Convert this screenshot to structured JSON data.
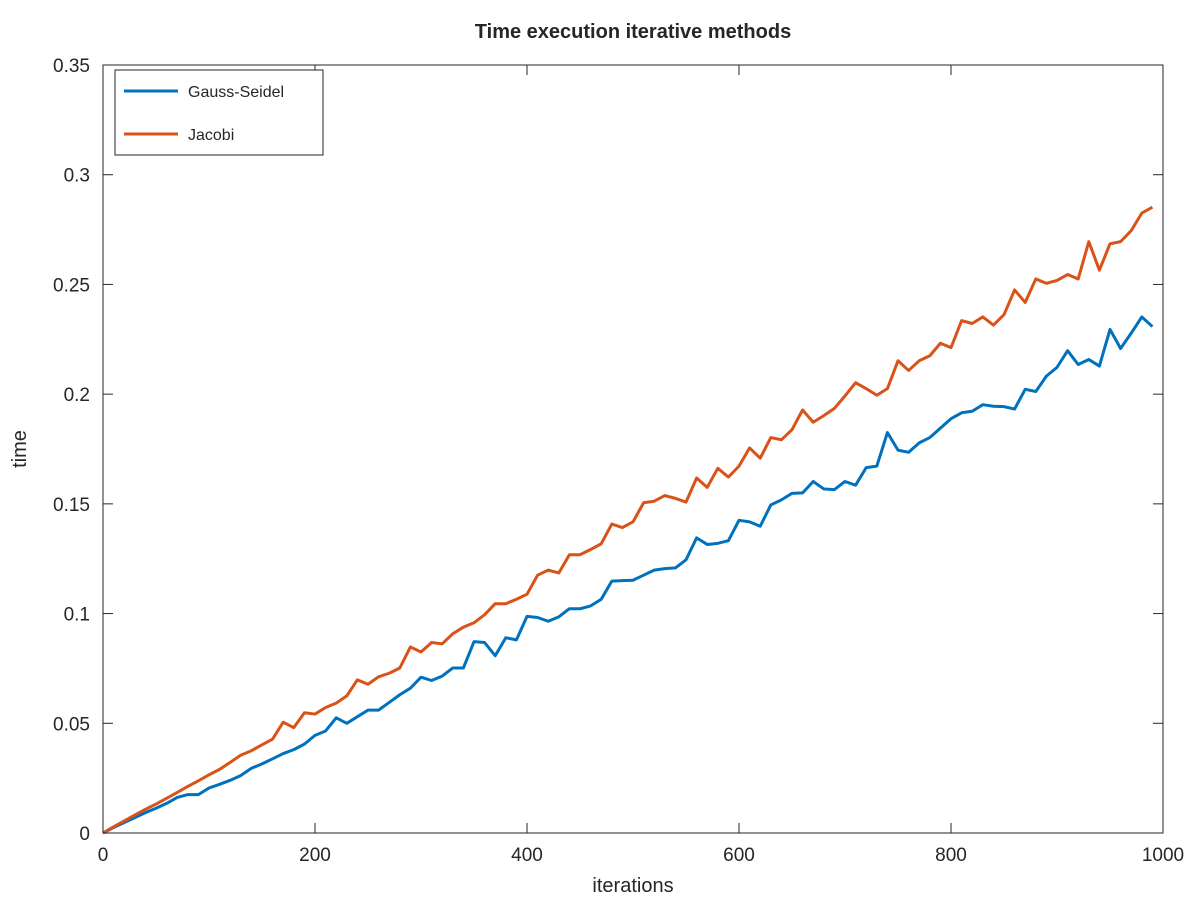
{
  "chart_data": {
    "type": "line",
    "title": "Time execution iterative methods",
    "xlabel": "iterations",
    "ylabel": "time",
    "xlim": [
      0,
      1000
    ],
    "ylim": [
      0,
      0.35
    ],
    "x_ticks": [
      0,
      200,
      400,
      600,
      800,
      1000
    ],
    "x_tick_labels": [
      "0",
      "200",
      "400",
      "600",
      "800",
      "1000"
    ],
    "y_ticks": [
      0,
      0.05,
      0.1,
      0.15,
      0.2,
      0.25,
      0.3,
      0.35
    ],
    "y_tick_labels": [
      "0",
      "0.05",
      "0.1",
      "0.15",
      "0.2",
      "0.25",
      "0.3",
      "0.35"
    ],
    "grid": false,
    "legend_position": "top-left",
    "x": [
      0,
      10,
      20,
      30,
      40,
      50,
      60,
      70,
      80,
      90,
      100,
      110,
      120,
      130,
      140,
      150,
      160,
      170,
      180,
      190,
      200,
      210,
      220,
      230,
      240,
      250,
      260,
      270,
      280,
      290,
      300,
      310,
      320,
      330,
      340,
      350,
      360,
      370,
      380,
      390,
      400,
      410,
      420,
      430,
      440,
      450,
      460,
      470,
      480,
      490,
      500,
      510,
      520,
      530,
      540,
      550,
      560,
      570,
      580,
      590,
      600,
      610,
      620,
      630,
      640,
      650,
      660,
      670,
      680,
      690,
      700,
      710,
      720,
      730,
      740,
      750,
      760,
      770,
      780,
      790,
      800,
      810,
      820,
      830,
      840,
      850,
      860,
      870,
      880,
      890,
      900,
      910,
      920,
      930,
      940,
      950,
      960,
      970,
      980,
      990
    ],
    "series": [
      {
        "name": "Gauss-Seidel",
        "color": "#0072BD",
        "values": [
          0,
          0.0025,
          0.0048,
          0.007,
          0.0093,
          0.0113,
          0.0135,
          0.0162,
          0.0175,
          0.0175,
          0.0205,
          0.0222,
          0.024,
          0.0262,
          0.0295,
          0.0315,
          0.0338,
          0.0362,
          0.038,
          0.0405,
          0.0445,
          0.0465,
          0.0525,
          0.05,
          0.053,
          0.056,
          0.056,
          0.0595,
          0.063,
          0.066,
          0.071,
          0.0695,
          0.0715,
          0.0752,
          0.0752,
          0.0872,
          0.0868,
          0.0808,
          0.089,
          0.088,
          0.0987,
          0.0982,
          0.0965,
          0.0985,
          0.1022,
          0.1022,
          0.1035,
          0.1065,
          0.1148,
          0.115,
          0.1152,
          0.1175,
          0.1198,
          0.1205,
          0.1208,
          0.1245,
          0.1345,
          0.1315,
          0.132,
          0.1332,
          0.1425,
          0.1418,
          0.1398,
          0.1495,
          0.1518,
          0.1548,
          0.155,
          0.1602,
          0.1568,
          0.1565,
          0.1602,
          0.1585,
          0.1665,
          0.1672,
          0.1825,
          0.1745,
          0.1735,
          0.1778,
          0.1802,
          0.1845,
          0.1888,
          0.1915,
          0.1922,
          0.1952,
          0.1945,
          0.1943,
          0.1932,
          0.2022,
          0.2012,
          0.2082,
          0.2122,
          0.2198,
          0.2135,
          0.2158,
          0.2128,
          0.2295,
          0.2208,
          0.2278,
          0.2352,
          0.2308
        ]
      },
      {
        "name": "Jacobi",
        "color": "#D95319",
        "values": [
          0,
          0.0028,
          0.0055,
          0.0082,
          0.0108,
          0.0132,
          0.0158,
          0.0185,
          0.0212,
          0.0238,
          0.0265,
          0.029,
          0.0322,
          0.0355,
          0.0375,
          0.0402,
          0.0428,
          0.0505,
          0.048,
          0.0548,
          0.0542,
          0.0572,
          0.0592,
          0.0625,
          0.0698,
          0.0678,
          0.0712,
          0.0728,
          0.0752,
          0.0848,
          0.0825,
          0.0868,
          0.0862,
          0.0908,
          0.0938,
          0.0958,
          0.0995,
          0.1045,
          0.1045,
          0.1065,
          0.1088,
          0.1175,
          0.1198,
          0.1185,
          0.1268,
          0.1268,
          0.1292,
          0.1318,
          0.1408,
          0.1392,
          0.1418,
          0.1505,
          0.1512,
          0.1538,
          0.1525,
          0.1508,
          0.1618,
          0.1575,
          0.1662,
          0.1622,
          0.1672,
          0.1755,
          0.1708,
          0.1802,
          0.1792,
          0.1838,
          0.1928,
          0.1872,
          0.1902,
          0.1935,
          0.1992,
          0.2052,
          0.2025,
          0.1995,
          0.2025,
          0.2152,
          0.2108,
          0.2152,
          0.2175,
          0.2232,
          0.2212,
          0.2335,
          0.2322,
          0.2352,
          0.2315,
          0.2362,
          0.2475,
          0.2418,
          0.2525,
          0.2505,
          0.2518,
          0.2545,
          0.2525,
          0.2695,
          0.2565,
          0.2685,
          0.2695,
          0.2745,
          0.2825,
          0.2852
        ]
      }
    ]
  }
}
